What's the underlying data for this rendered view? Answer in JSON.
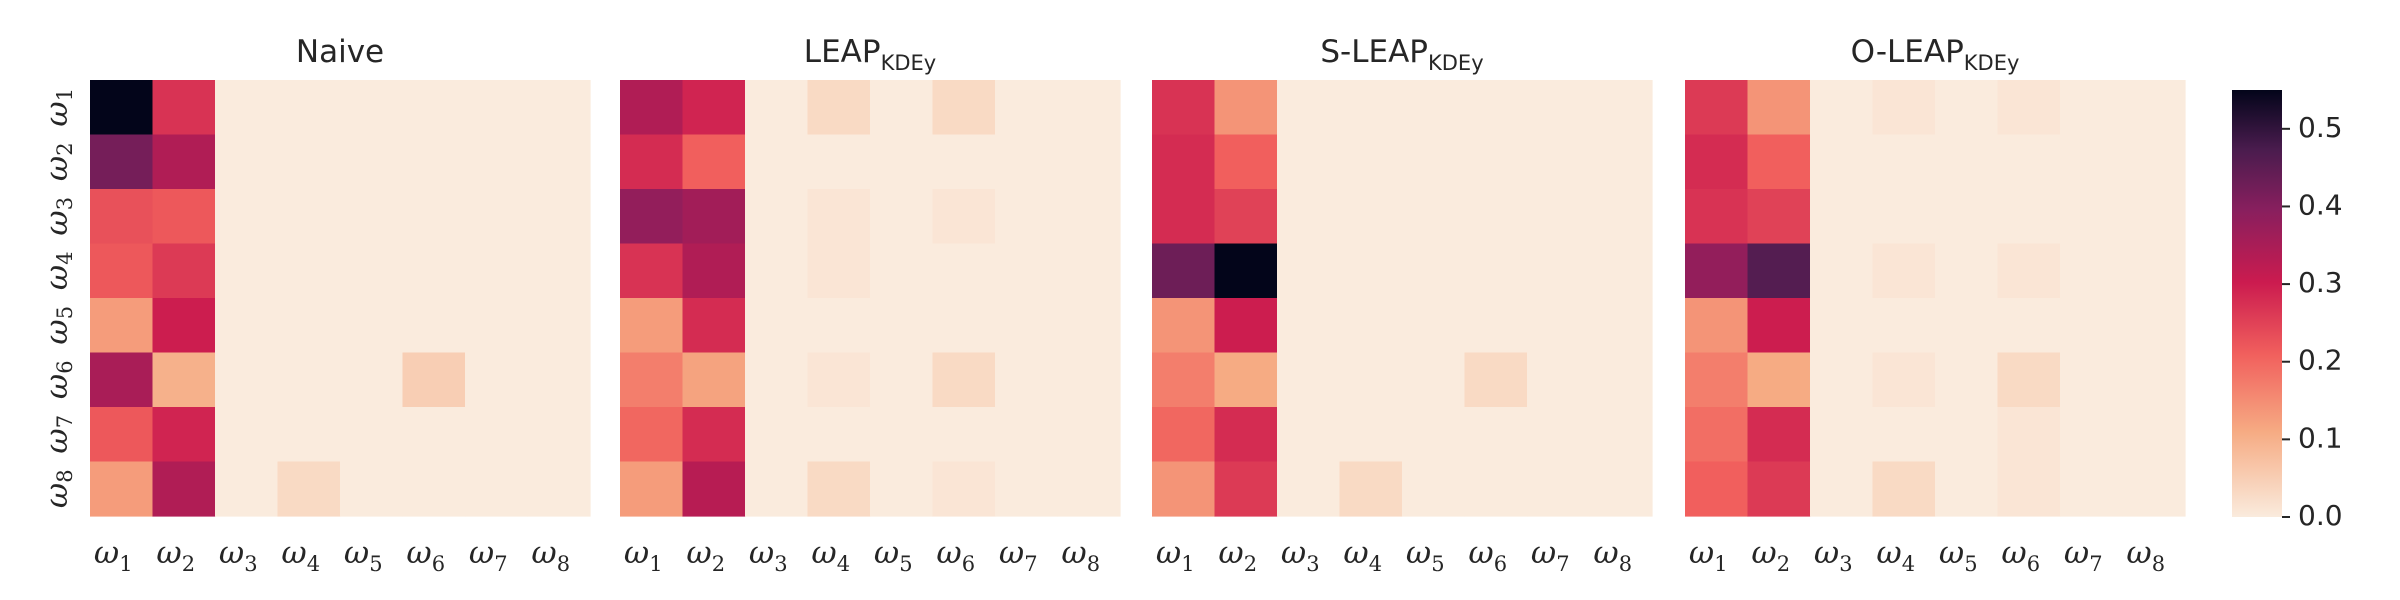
{
  "chart_data": {
    "type": "heatmap",
    "shared_tick_labels": {
      "base": "ω",
      "subscripts": [
        "1",
        "2",
        "3",
        "4",
        "5",
        "6",
        "7",
        "8"
      ]
    },
    "colorbar": {
      "ticks": [
        "0.0",
        "0.1",
        "0.2",
        "0.3",
        "0.4",
        "0.5"
      ],
      "range": [
        0,
        0.55
      ],
      "colormap": "rocket_r"
    },
    "panels": [
      {
        "title_main": "Naive",
        "title_sub": "",
        "values": [
          [
            0.55,
            0.27,
            0.0,
            0.0,
            0.0,
            0.0,
            0.0,
            0.0
          ],
          [
            0.42,
            0.34,
            0.0,
            0.0,
            0.0,
            0.0,
            0.0,
            0.0
          ],
          [
            0.23,
            0.22,
            0.0,
            0.0,
            0.0,
            0.0,
            0.0,
            0.0
          ],
          [
            0.22,
            0.26,
            0.0,
            0.0,
            0.0,
            0.0,
            0.0,
            0.0
          ],
          [
            0.13,
            0.3,
            0.0,
            0.0,
            0.0,
            0.0,
            0.0,
            0.0
          ],
          [
            0.35,
            0.1,
            0.0,
            0.0,
            0.0,
            0.05,
            0.0,
            0.0
          ],
          [
            0.22,
            0.29,
            0.0,
            0.0,
            0.0,
            0.0,
            0.0,
            0.0
          ],
          [
            0.13,
            0.34,
            0.0,
            0.03,
            0.0,
            0.0,
            0.0,
            0.0
          ]
        ]
      },
      {
        "title_main": "LEAP",
        "title_sub": "KDEy",
        "values": [
          [
            0.34,
            0.29,
            0.0,
            0.03,
            0.0,
            0.03,
            0.0,
            0.0
          ],
          [
            0.28,
            0.21,
            0.0,
            0.0,
            0.0,
            0.0,
            0.0,
            0.0
          ],
          [
            0.38,
            0.36,
            0.0,
            0.01,
            0.0,
            0.01,
            0.0,
            0.0
          ],
          [
            0.27,
            0.34,
            0.0,
            0.01,
            0.0,
            0.0,
            0.0,
            0.0
          ],
          [
            0.13,
            0.28,
            0.0,
            0.0,
            0.0,
            0.0,
            0.0,
            0.0
          ],
          [
            0.17,
            0.12,
            0.0,
            0.01,
            0.0,
            0.03,
            0.0,
            0.0
          ],
          [
            0.2,
            0.28,
            0.0,
            0.0,
            0.0,
            0.0,
            0.0,
            0.0
          ],
          [
            0.13,
            0.33,
            0.0,
            0.03,
            0.0,
            0.01,
            0.0,
            0.0
          ]
        ]
      },
      {
        "title_main": "S-LEAP",
        "title_sub": "KDEy",
        "values": [
          [
            0.27,
            0.14,
            0.0,
            0.0,
            0.0,
            0.0,
            0.0,
            0.0
          ],
          [
            0.28,
            0.21,
            0.0,
            0.0,
            0.0,
            0.0,
            0.0,
            0.0
          ],
          [
            0.28,
            0.25,
            0.0,
            0.0,
            0.0,
            0.0,
            0.0,
            0.0
          ],
          [
            0.43,
            0.55,
            0.0,
            0.0,
            0.0,
            0.0,
            0.0,
            0.0
          ],
          [
            0.14,
            0.3,
            0.0,
            0.0,
            0.0,
            0.0,
            0.0,
            0.0
          ],
          [
            0.17,
            0.11,
            0.0,
            0.0,
            0.0,
            0.03,
            0.0,
            0.0
          ],
          [
            0.2,
            0.28,
            0.0,
            0.0,
            0.0,
            0.0,
            0.0,
            0.0
          ],
          [
            0.14,
            0.26,
            0.0,
            0.03,
            0.0,
            0.0,
            0.0,
            0.0
          ]
        ]
      },
      {
        "title_main": "O-LEAP",
        "title_sub": "KDEy",
        "values": [
          [
            0.26,
            0.14,
            0.0,
            0.01,
            0.0,
            0.01,
            0.0,
            0.0
          ],
          [
            0.28,
            0.21,
            0.0,
            0.0,
            0.0,
            0.0,
            0.0,
            0.0
          ],
          [
            0.27,
            0.25,
            0.0,
            0.0,
            0.0,
            0.0,
            0.0,
            0.0
          ],
          [
            0.38,
            0.46,
            0.0,
            0.01,
            0.0,
            0.01,
            0.0,
            0.0
          ],
          [
            0.14,
            0.3,
            0.0,
            0.0,
            0.0,
            0.0,
            0.0,
            0.0
          ],
          [
            0.17,
            0.11,
            0.0,
            0.01,
            0.0,
            0.03,
            0.0,
            0.0
          ],
          [
            0.19,
            0.28,
            0.0,
            0.0,
            0.0,
            0.01,
            0.0,
            0.0
          ],
          [
            0.21,
            0.26,
            0.0,
            0.03,
            0.0,
            0.01,
            0.0,
            0.0
          ]
        ]
      }
    ]
  }
}
